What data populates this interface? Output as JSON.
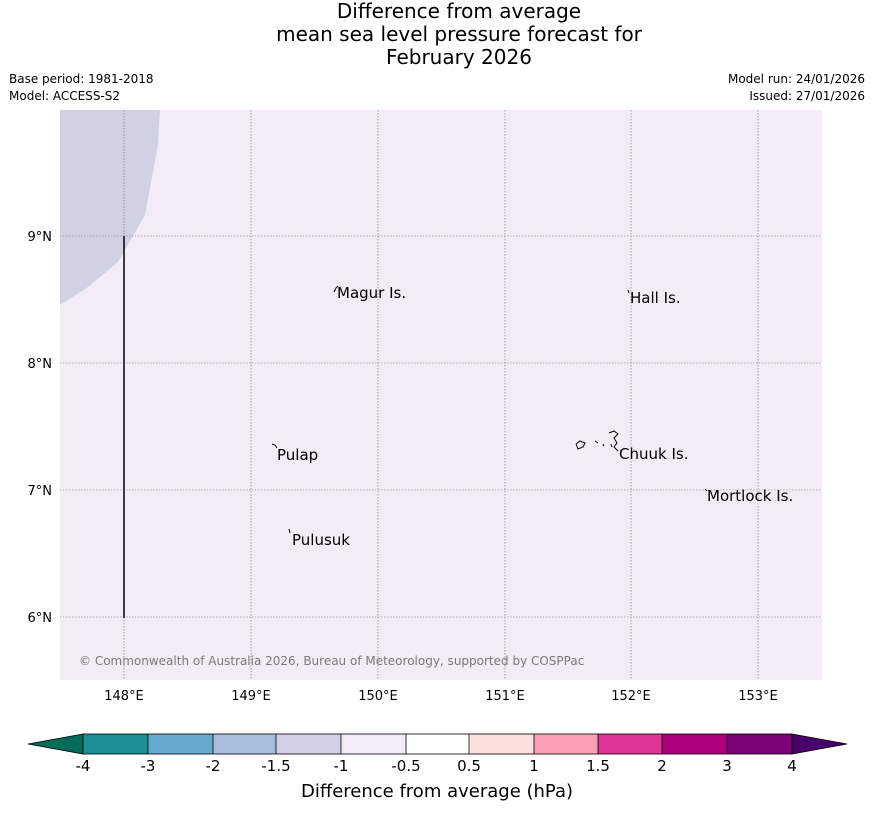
{
  "title": {
    "line1": "Difference from average",
    "line2": "mean sea level pressure forecast for",
    "line3": "February 2026"
  },
  "meta": {
    "base_period": "Base period: 1981-2018",
    "model": "Model: ACCESS-S2",
    "model_run": "Model run: 24/01/2026",
    "issued": "Issued: 27/01/2026"
  },
  "map": {
    "x_ticks": [
      "148°E",
      "149°E",
      "150°E",
      "151°E",
      "152°E",
      "153°E"
    ],
    "y_ticks": [
      "9°N",
      "8°N",
      "7°N",
      "6°N"
    ],
    "places": [
      {
        "name": "Magur Is."
      },
      {
        "name": "Hall Is."
      },
      {
        "name": "Pulap"
      },
      {
        "name": "Chuuk Is."
      },
      {
        "name": "Mortlock Is."
      },
      {
        "name": "Pulusuk"
      }
    ],
    "copyright": "© Commonwealth of Australia 2026, Bureau of Meteorology, supported by COSPPac",
    "colors": {
      "background_class": "#f3ecf6",
      "region_class": "#d1d1e4"
    }
  },
  "colorbar": {
    "label": "Difference from average (hPa)",
    "ticks": [
      "-4",
      "-3",
      "-2",
      "-1.5",
      "-1",
      "-0.5",
      "0.5",
      "1",
      "1.5",
      "2",
      "3",
      "4"
    ],
    "under_color": "#016c59",
    "over_color": "#49006a",
    "colors": [
      "#1b9196",
      "#67a9cf",
      "#a6bddb",
      "#d0d1e6",
      "#f3ecf6",
      "#ffffff",
      "#fde0dd",
      "#fa9fb5",
      "#dd3497",
      "#ae017e",
      "#7a0177"
    ]
  }
}
